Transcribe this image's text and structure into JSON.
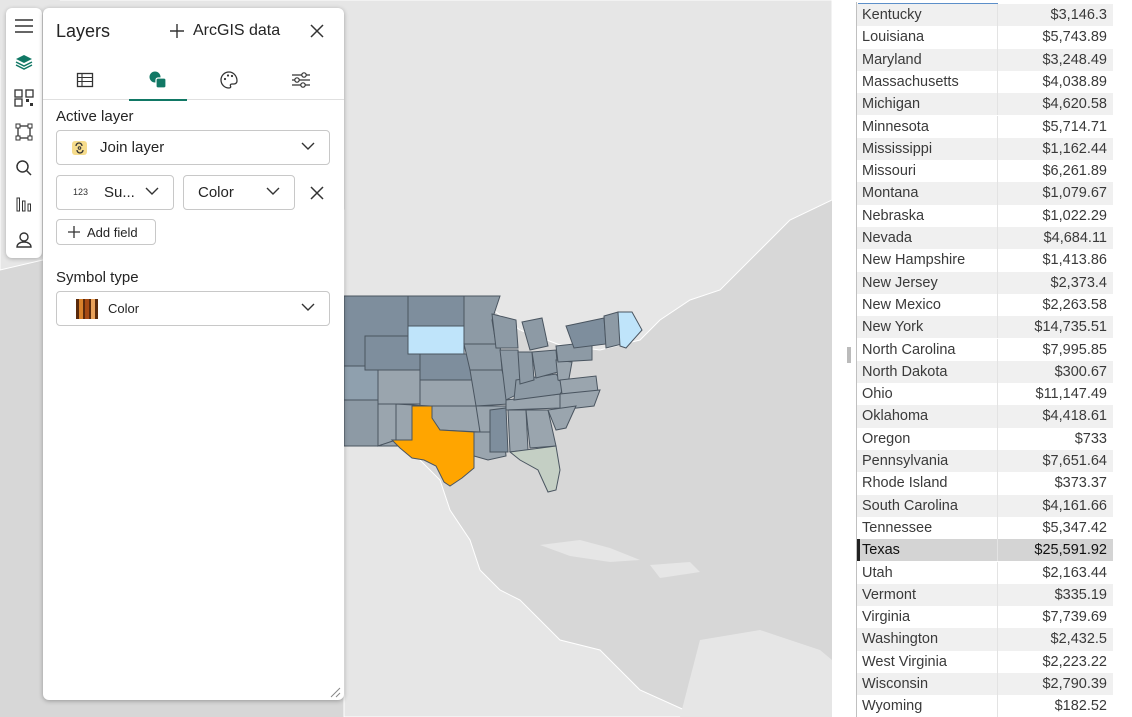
{
  "panel": {
    "title": "Layers",
    "add_data_label": "ArcGIS data",
    "active_layer_label": "Active layer",
    "active_layer_value": "Join layer",
    "field_badge": "123",
    "field_value": "Su...",
    "style_value": "Color",
    "add_field_label": "Add field",
    "symbol_type_label": "Symbol type",
    "symbol_type_value": "Color",
    "tabs": [
      "table-icon",
      "layers-shapes-icon",
      "palette-icon",
      "sliders-icon"
    ],
    "active_tab": 1,
    "accent_color": "#117865"
  },
  "toolbar": {
    "icons": [
      "menu-icon",
      "layers-icon",
      "qr-icon",
      "select-area-icon",
      "search-icon",
      "analytics-icon",
      "person-icon"
    ],
    "active_icon": "layers-icon"
  },
  "map": {
    "highlight_color": "#ffa500",
    "light_color": "#bfe4fa"
  },
  "table": {
    "rows": [
      {
        "state": "Kentucky",
        "value": "$3,146.3"
      },
      {
        "state": "Louisiana",
        "value": "$5,743.89"
      },
      {
        "state": "Maryland",
        "value": "$3,248.49"
      },
      {
        "state": "Massachusetts",
        "value": "$4,038.89"
      },
      {
        "state": "Michigan",
        "value": "$4,620.58"
      },
      {
        "state": "Minnesota",
        "value": "$5,714.71"
      },
      {
        "state": "Mississippi",
        "value": "$1,162.44"
      },
      {
        "state": "Missouri",
        "value": "$6,261.89"
      },
      {
        "state": "Montana",
        "value": "$1,079.67"
      },
      {
        "state": "Nebraska",
        "value": "$1,022.29"
      },
      {
        "state": "Nevada",
        "value": "$4,684.11"
      },
      {
        "state": "New Hampshire",
        "value": "$1,413.86"
      },
      {
        "state": "New Jersey",
        "value": "$2,373.4"
      },
      {
        "state": "New Mexico",
        "value": "$2,263.58"
      },
      {
        "state": "New York",
        "value": "$14,735.51"
      },
      {
        "state": "North Carolina",
        "value": "$7,995.85"
      },
      {
        "state": "North Dakota",
        "value": "$300.67"
      },
      {
        "state": "Ohio",
        "value": "$11,147.49"
      },
      {
        "state": "Oklahoma",
        "value": "$4,418.61"
      },
      {
        "state": "Oregon",
        "value": "$733"
      },
      {
        "state": "Pennsylvania",
        "value": "$7,651.64"
      },
      {
        "state": "Rhode Island",
        "value": "$373.37"
      },
      {
        "state": "South Carolina",
        "value": "$4,161.66"
      },
      {
        "state": "Tennessee",
        "value": "$5,347.42"
      },
      {
        "state": "Texas",
        "value": "$25,591.92"
      },
      {
        "state": "Utah",
        "value": "$2,163.44"
      },
      {
        "state": "Vermont",
        "value": "$335.19"
      },
      {
        "state": "Virginia",
        "value": "$7,739.69"
      },
      {
        "state": "Washington",
        "value": "$2,432.5"
      },
      {
        "state": "West Virginia",
        "value": "$2,223.22"
      },
      {
        "state": "Wisconsin",
        "value": "$2,790.39"
      },
      {
        "state": "Wyoming",
        "value": "$182.52"
      }
    ],
    "selected_state": "Texas"
  }
}
